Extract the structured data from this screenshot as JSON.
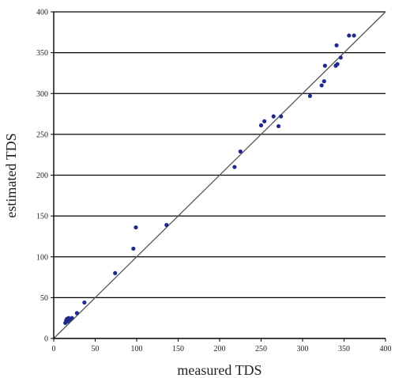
{
  "chart_data": {
    "type": "scatter",
    "title": "",
    "xlabel": "measured TDS",
    "ylabel": "estimated TDS",
    "xlim": [
      0,
      400
    ],
    "ylim": [
      0,
      400
    ],
    "xticks": [
      0,
      50,
      100,
      150,
      200,
      250,
      300,
      350,
      400
    ],
    "yticks": [
      0,
      50,
      100,
      150,
      200,
      250,
      300,
      350,
      400
    ],
    "grid": "horizontal",
    "reference_line": "1:1",
    "colors": {
      "points": "#1f2a8c",
      "grid": "#000000",
      "axis": "#000000",
      "reference": "#555555"
    },
    "series": [
      {
        "points": [
          [
            14,
            19
          ],
          [
            15,
            22
          ],
          [
            16,
            24
          ],
          [
            17,
            21
          ],
          [
            18,
            25
          ],
          [
            19,
            23
          ],
          [
            20,
            24
          ],
          [
            22,
            25
          ],
          [
            28,
            31
          ],
          [
            37,
            44
          ],
          [
            74,
            80
          ],
          [
            96,
            110
          ],
          [
            99,
            136
          ],
          [
            136,
            139
          ],
          [
            218,
            210
          ],
          [
            225,
            229
          ],
          [
            250,
            261
          ],
          [
            254,
            266
          ],
          [
            265,
            272
          ],
          [
            271,
            260
          ],
          [
            274,
            272
          ],
          [
            309,
            297
          ],
          [
            323,
            310
          ],
          [
            326,
            315
          ],
          [
            327,
            334
          ],
          [
            340,
            334
          ],
          [
            341,
            359
          ],
          [
            342,
            336
          ],
          [
            346,
            344
          ],
          [
            356,
            371
          ],
          [
            362,
            371
          ]
        ]
      }
    ]
  }
}
